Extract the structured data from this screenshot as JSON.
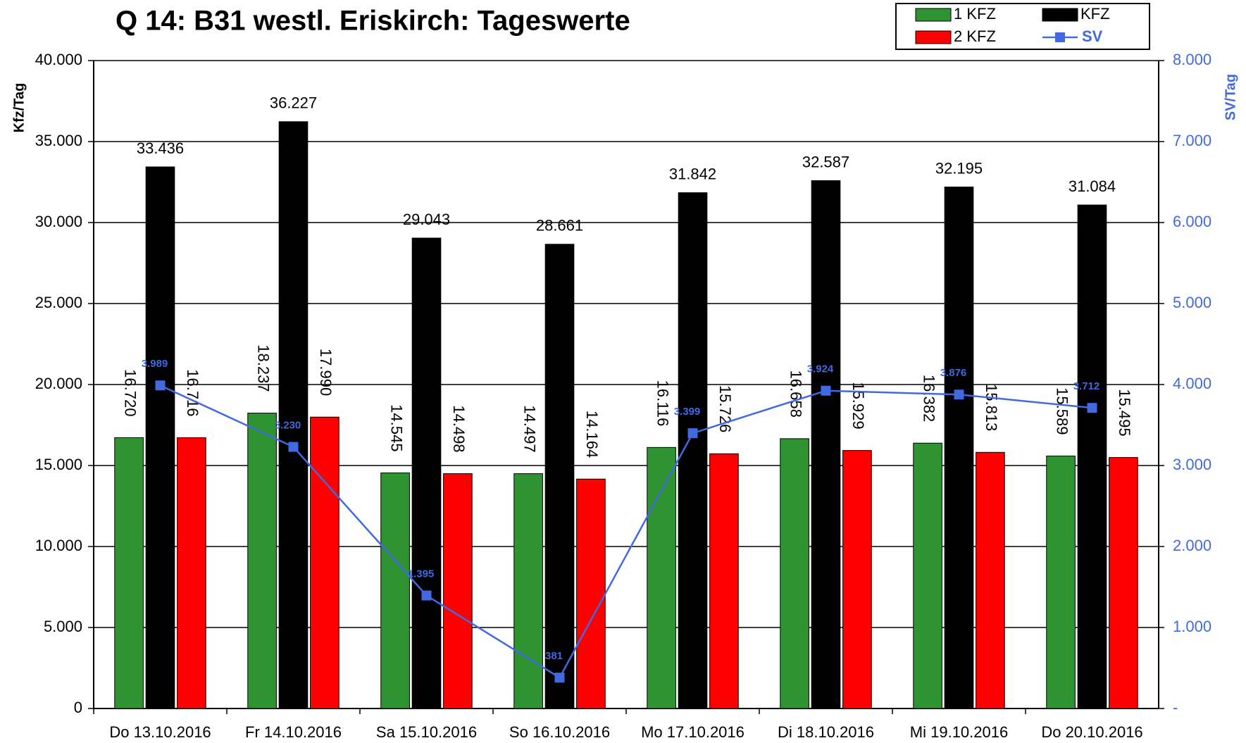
{
  "chart_data": {
    "type": "bar",
    "title": "Q 14: B31 westl. Eriskirch: Tageswerte",
    "ylabel": "Kfz/Tag",
    "y2label": "SV/Tag",
    "categories": [
      "Do 13.10.2016",
      "Fr 14.10.2016",
      "Sa 15.10.2016",
      "So 16.10.2016",
      "Mo 17.10.2016",
      "Di 18.10.2016",
      "Mi 19.10.2016",
      "Do 20.10.2016"
    ],
    "series": [
      {
        "name": "1 KFZ",
        "color": "#2e9330",
        "values": [
          16720,
          18237,
          14545,
          14497,
          16116,
          16658,
          16382,
          15589
        ],
        "value_labels": [
          "16.720",
          "18.237",
          "14.545",
          "14.497",
          "16.116",
          "16.658",
          "16.382",
          "15.589"
        ]
      },
      {
        "name": "KFZ",
        "color": "#000000",
        "values": [
          33436,
          36227,
          29043,
          28661,
          31842,
          32587,
          32195,
          31084
        ],
        "value_labels": [
          "33.436",
          "36.227",
          "29.043",
          "28.661",
          "31.842",
          "32.587",
          "32.195",
          "31.084"
        ]
      },
      {
        "name": "2 KFZ",
        "color": "#ff0000",
        "values": [
          16716,
          17990,
          14498,
          14164,
          15726,
          15929,
          15813,
          15495
        ],
        "value_labels": [
          "16.716",
          "17.990",
          "14.498",
          "14.164",
          "15.726",
          "15.929",
          "15.813",
          "15.495"
        ]
      },
      {
        "name": "SV",
        "color": "#4169e1",
        "type": "line",
        "axis": "y2",
        "values": [
          3989,
          3230,
          1395,
          381,
          3399,
          3924,
          3876,
          3712
        ],
        "value_labels": [
          "3.989",
          "3.230",
          "1.395",
          "381",
          "3.399",
          "3.924",
          "3.876",
          "3.712"
        ]
      }
    ],
    "ylim": [
      0,
      40000
    ],
    "yticks": [
      0,
      {
        "value": 5000,
        "label": "5.000"
      },
      {
        "value": 10000,
        "label": "10.000"
      },
      {
        "value": 15000,
        "label": "15.000"
      },
      {
        "value": 20000,
        "label": "20.000"
      },
      {
        "value": 25000,
        "label": "25.000"
      },
      {
        "value": 30000,
        "label": "30.000"
      },
      {
        "value": 35000,
        "label": "35.000"
      },
      {
        "value": 40000,
        "label": "40.000"
      }
    ],
    "y2lim": [
      0,
      8000
    ],
    "y2ticks": [
      {
        "value": 0,
        "label": "-"
      },
      {
        "value": 1000,
        "label": "1.000"
      },
      {
        "value": 2000,
        "label": "2.000"
      },
      {
        "value": 3000,
        "label": "3.000"
      },
      {
        "value": 4000,
        "label": "4.000"
      },
      {
        "value": 5000,
        "label": "5.000"
      },
      {
        "value": 6000,
        "label": "6.000"
      },
      {
        "value": 7000,
        "label": "7.000"
      },
      {
        "value": 8000,
        "label": "8.000"
      }
    ],
    "grid": true,
    "legend": "upper right"
  }
}
